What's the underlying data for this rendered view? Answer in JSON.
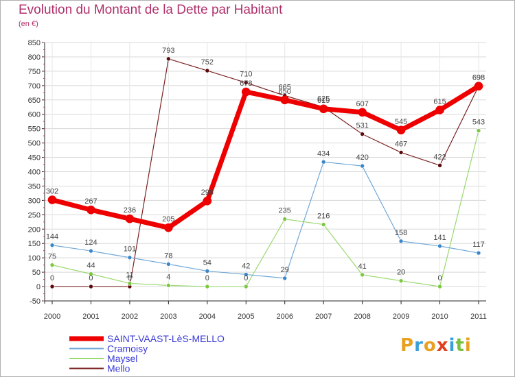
{
  "title": "Evolution du Montant de la Dette par Habitant",
  "subtitle": "(en €)",
  "logo": {
    "text": "Proxiti",
    "colors": [
      "#e8a020",
      "#3aa0d8",
      "#e8a020",
      "#e04020",
      "#3aa0d8",
      "#7ac040",
      "#e8a020"
    ]
  },
  "chart_data": {
    "type": "line",
    "categories": [
      "2000",
      "2001",
      "2002",
      "2003",
      "2004",
      "2005",
      "2006",
      "2007",
      "2008",
      "2009",
      "2010",
      "2011"
    ],
    "ylim": [
      -50,
      850
    ],
    "yticks": [
      "-50",
      "0",
      "50",
      "100",
      "150",
      "200",
      "250",
      "300",
      "350",
      "400",
      "450",
      "500",
      "550",
      "600",
      "650",
      "700",
      "750",
      "800",
      "850"
    ],
    "grid": true,
    "legend_position": "bottom-left",
    "series": [
      {
        "name": "Mello",
        "color": "#7a2020",
        "point_color": "#5a0a0a",
        "width": 1.2,
        "point_r": 3,
        "values": [
          0,
          0,
          0,
          793,
          752,
          710,
          665,
          625,
          531,
          467,
          422,
          698
        ],
        "labels": [
          "0",
          "0",
          "0",
          "793",
          "752",
          "710",
          "665",
          "625",
          "531",
          "467",
          "422",
          "698"
        ]
      },
      {
        "name": "Maysel",
        "color": "#9ad870",
        "point_color": "#7cc840",
        "width": 1.2,
        "point_r": 3,
        "values": [
          75,
          44,
          11,
          4,
          0,
          0,
          235,
          216,
          41,
          20,
          0,
          543
        ],
        "labels": [
          "75",
          "44",
          "11",
          "4",
          "0",
          "0",
          "235",
          "216",
          "41",
          "20",
          "0",
          "543"
        ]
      },
      {
        "name": "Cramoisy",
        "color": "#6fa8d8",
        "point_color": "#3a86c8",
        "width": 1.2,
        "point_r": 3,
        "values": [
          144,
          124,
          101,
          78,
          54,
          42,
          29,
          434,
          420,
          158,
          141,
          117
        ],
        "labels": [
          "144",
          "124",
          "101",
          "78",
          "54",
          "42",
          "29",
          "434",
          "420",
          "158",
          "141",
          "117"
        ]
      },
      {
        "name": "SAINT-VAAST-LèS-MELLO",
        "color": "#ee0000",
        "point_color": "#ee0000",
        "width": 7,
        "point_r": 6,
        "values": [
          302,
          267,
          236,
          205,
          298,
          678,
          650,
          619,
          607,
          545,
          615,
          698
        ],
        "labels": [
          "302",
          "267",
          "236",
          "205",
          "298",
          "678",
          "650",
          "619",
          "607",
          "545",
          "615",
          "698"
        ]
      }
    ],
    "legend_order": [
      "SAINT-VAAST-LèS-MELLO",
      "Cramoisy",
      "Maysel",
      "Mello"
    ]
  }
}
